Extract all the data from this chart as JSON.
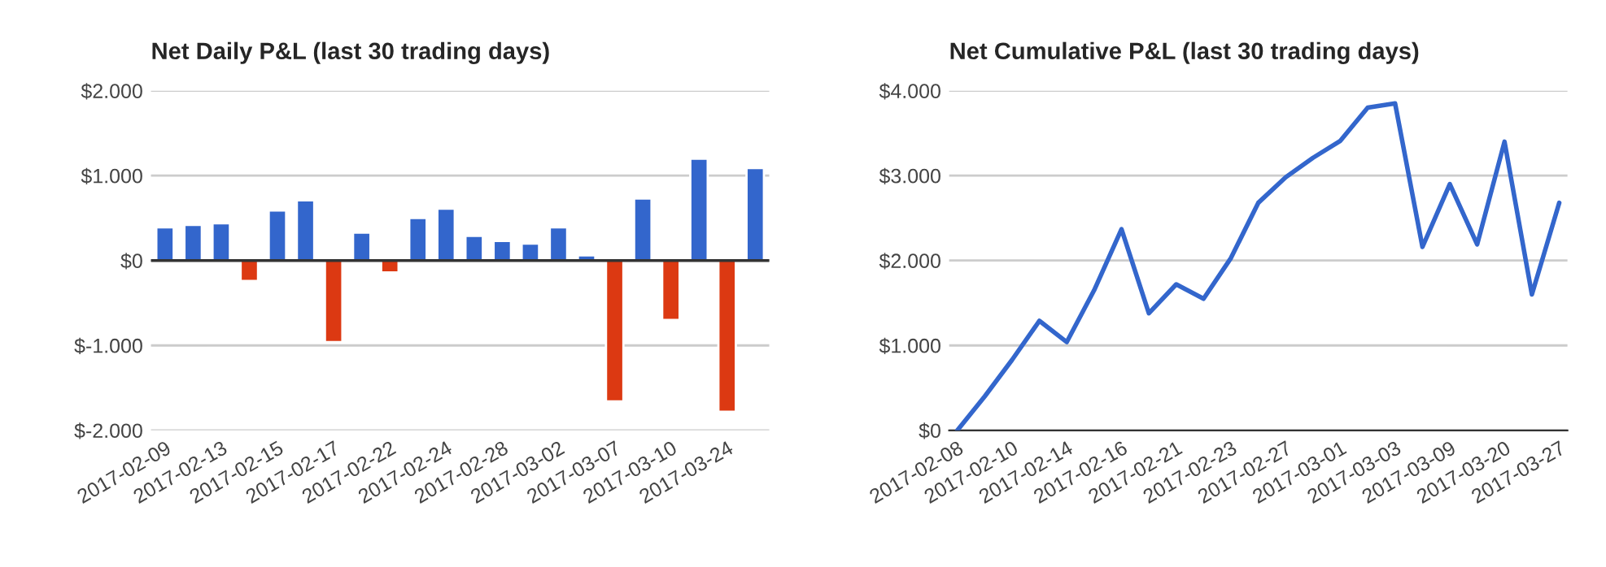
{
  "chart_data": [
    {
      "type": "bar",
      "title": "Net Daily P&L (last 30 trading days)",
      "categories": [
        "2017-02-09",
        null,
        "2017-02-13",
        null,
        "2017-02-15",
        null,
        "2017-02-17",
        null,
        "2017-02-22",
        null,
        "2017-02-24",
        null,
        "2017-02-28",
        null,
        "2017-03-02",
        null,
        "2017-03-07",
        null,
        "2017-03-10",
        null,
        "2017-03-24",
        null
      ],
      "values": [
        390,
        420,
        440,
        -240,
        590,
        710,
        -960,
        330,
        -140,
        500,
        610,
        290,
        230,
        200,
        390,
        60,
        -1660,
        730,
        -700,
        1200,
        -1780,
        1090
      ],
      "colors": [
        "#3366cc",
        "#3366cc",
        "#3366cc",
        "#dc3912",
        "#3366cc",
        "#3366cc",
        "#dc3912",
        "#3366cc",
        "#dc3912",
        "#3366cc",
        "#3366cc",
        "#3366cc",
        "#3366cc",
        "#3366cc",
        "#3366cc",
        "#3366cc",
        "#dc3912",
        "#3366cc",
        "#dc3912",
        "#3366cc",
        "#dc3912",
        "#3366cc"
      ],
      "ylim": [
        -2000,
        2000
      ],
      "yticks": [
        {
          "value": -2000,
          "label": "$-2.000"
        },
        {
          "value": -1000,
          "label": "$-1.000"
        },
        {
          "value": 0,
          "label": "$0"
        },
        {
          "value": 1000,
          "label": "$1.000"
        },
        {
          "value": 2000,
          "label": "$2.000"
        }
      ],
      "ref_lines": [
        {
          "axis": "y",
          "value": 0,
          "color": "#333333"
        }
      ],
      "grid": "y",
      "legend": false
    },
    {
      "type": "line",
      "title": "Net Cumulative P&L (last 30 trading days)",
      "categories": [
        "2017-02-08",
        null,
        "2017-02-10",
        null,
        "2017-02-14",
        null,
        "2017-02-16",
        null,
        "2017-02-21",
        null,
        "2017-02-23",
        null,
        "2017-02-27",
        null,
        "2017-03-01",
        null,
        "2017-03-03",
        null,
        "2017-03-09",
        null,
        "2017-03-20",
        null,
        "2017-03-27"
      ],
      "series": [
        {
          "color": "#3366cc",
          "values": [
            0,
            400,
            830,
            1290,
            1040,
            1650,
            2370,
            1380,
            1720,
            1550,
            2030,
            2680,
            2980,
            3210,
            3410,
            3800,
            3850,
            2160,
            2900,
            2190,
            3400,
            1600,
            2680
          ]
        }
      ],
      "ylim": [
        0,
        4000
      ],
      "yticks": [
        {
          "value": 0,
          "label": "$0"
        },
        {
          "value": 1000,
          "label": "$1.000"
        },
        {
          "value": 2000,
          "label": "$2.000"
        },
        {
          "value": 3000,
          "label": "$3.000"
        },
        {
          "value": 4000,
          "label": "$4.000"
        }
      ],
      "grid": "y",
      "legend": false,
      "marker": "none",
      "line_style": "solid"
    }
  ]
}
